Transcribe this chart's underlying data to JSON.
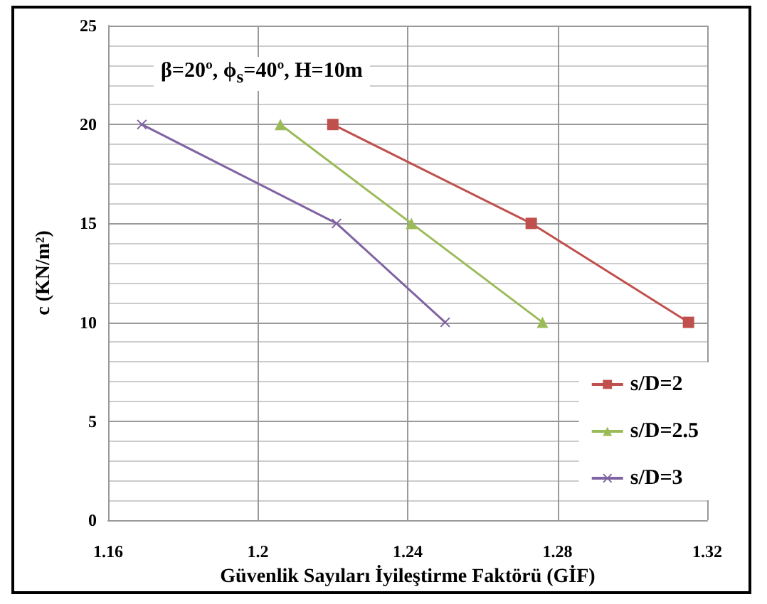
{
  "chart_data": {
    "type": "line",
    "xlabel": "Güvenlik Sayıları İyileştirme Faktörü (GİF)",
    "ylabel": "c (KN/m²)",
    "annotations": [
      "β=20º, ϕ$_{s}$=40º, H=10m"
    ],
    "series": [
      {
        "name": "s/D=2",
        "color": "#c0504d",
        "marker": "square",
        "x": [
          1.22,
          1.273,
          1.315
        ],
        "values": [
          20,
          15,
          10
        ]
      },
      {
        "name": "s/D=2.5",
        "color": "#9bbb59",
        "marker": "triangle",
        "x": [
          1.206,
          1.241,
          1.276
        ],
        "values": [
          20,
          15,
          10
        ]
      },
      {
        "name": "s/D=3",
        "color": "#8064a2",
        "marker": "cross",
        "x": [
          1.169,
          1.221,
          1.25
        ],
        "values": [
          20,
          15,
          10
        ]
      }
    ],
    "xlim": [
      1.16,
      1.32
    ],
    "xticks": [
      1.16,
      1.2,
      1.24,
      1.28,
      1.32
    ],
    "ylim": [
      0,
      25
    ],
    "yticks": [
      0,
      5,
      10,
      15,
      20,
      25
    ],
    "grid": true,
    "legend": "right"
  }
}
